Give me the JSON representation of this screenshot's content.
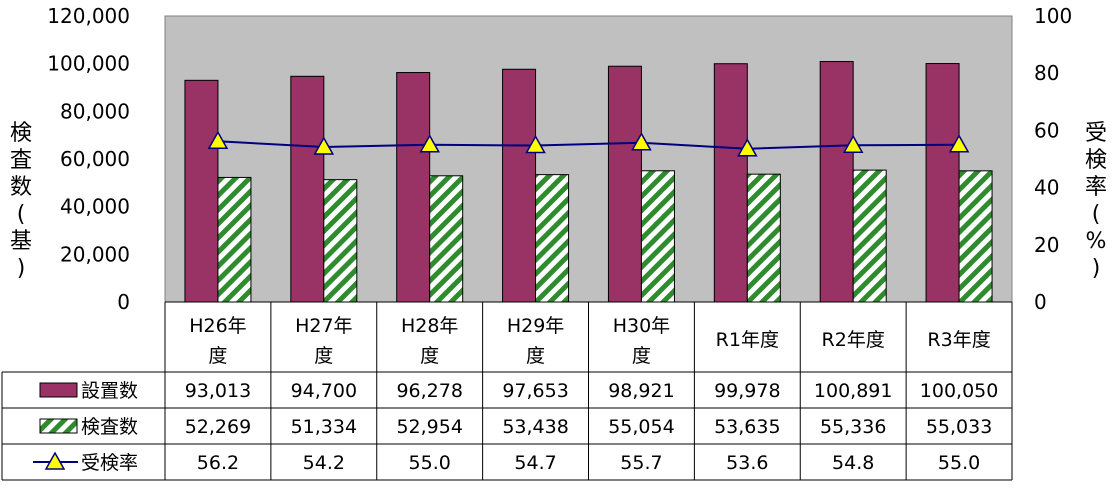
{
  "chart_data": {
    "type": "bar",
    "title": "",
    "categories": [
      [
        "H26年",
        "度"
      ],
      [
        "H27年",
        "度"
      ],
      [
        "H28年",
        "度"
      ],
      [
        "H29年",
        "度"
      ],
      [
        "H30年",
        "度"
      ],
      [
        "R1年度"
      ],
      [
        "R2年度"
      ],
      [
        "R3年度"
      ]
    ],
    "y_left": {
      "label_chars": [
        "検",
        "査",
        "数",
        "(",
        "基",
        ")"
      ],
      "ticks": [
        "120,000",
        "100,000",
        "80,000",
        "60,000",
        "40,000",
        "20,000",
        "0"
      ],
      "range": [
        0,
        120000
      ]
    },
    "y_right": {
      "label_chars": [
        "受",
        "検",
        "率",
        "(",
        "%",
        ")"
      ],
      "ticks": [
        "100",
        "80",
        "60",
        "40",
        "20",
        "0"
      ],
      "range": [
        0,
        100
      ]
    },
    "series": [
      {
        "name": "設置数",
        "kind": "bar",
        "axis": "left",
        "color": "#993366",
        "values": [
          93013,
          94700,
          96278,
          97653,
          98921,
          99978,
          100891,
          100050
        ],
        "labels": [
          "93,013",
          "94,700",
          "96,278",
          "97,653",
          "98,921",
          "99,978",
          "100,891",
          "100,050"
        ]
      },
      {
        "name": "検査数",
        "kind": "bar",
        "axis": "left",
        "color": "#2e8b2e",
        "pattern": "diagonal-stripes",
        "values": [
          52269,
          51334,
          52954,
          53438,
          55054,
          53635,
          55336,
          55033
        ],
        "labels": [
          "52,269",
          "51,334",
          "52,954",
          "53,438",
          "55,054",
          "53,635",
          "55,336",
          "55,033"
        ]
      },
      {
        "name": "受検率",
        "kind": "line",
        "axis": "right",
        "color": "#000080",
        "marker": "triangle",
        "marker_color": "#ffff00",
        "values": [
          56.2,
          54.2,
          55.0,
          54.7,
          55.7,
          53.6,
          54.8,
          55.0
        ],
        "labels": [
          "56.2",
          "54.2",
          "55.0",
          "54.7",
          "55.7",
          "53.6",
          "54.8",
          "55.0"
        ]
      }
    ],
    "plot_background": "#c0c0c0",
    "grid": false,
    "legend": "data-table-left"
  }
}
